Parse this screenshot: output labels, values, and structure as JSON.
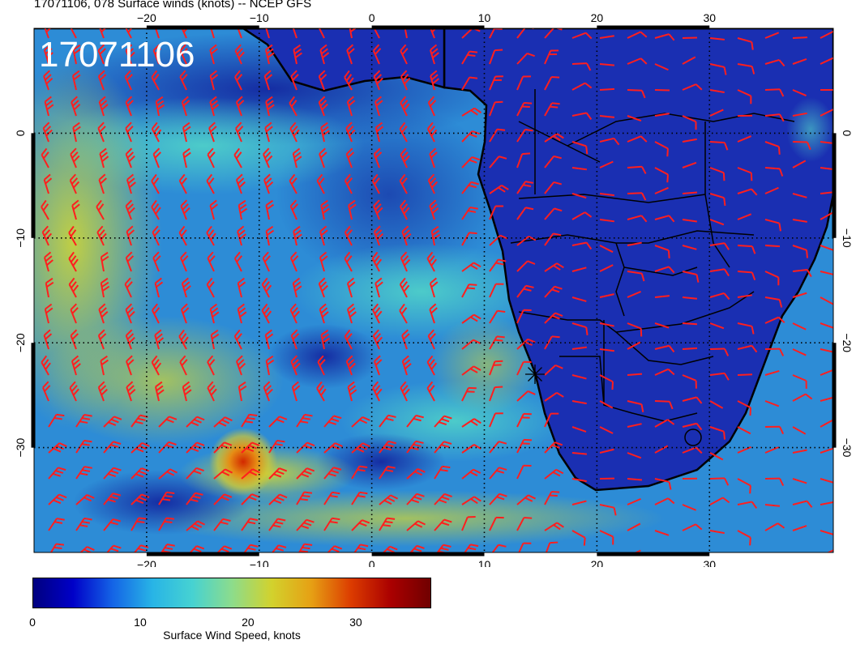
{
  "title": "17071106, 078 Surface winds (knots) -- NCEP GFS",
  "stamp": "17071106",
  "map": {
    "lon_range": [
      -30,
      41
    ],
    "lat_range": [
      -40,
      10
    ],
    "lon_ticks": [
      -20,
      -10,
      0,
      10,
      20,
      30
    ],
    "lat_ticks": [
      0,
      -10,
      -20,
      -30
    ],
    "lon_tick_labels": [
      "−20",
      "−10",
      "0",
      "10",
      "20",
      "30"
    ],
    "lat_tick_labels": [
      "0",
      "−10",
      "−20",
      "−30"
    ],
    "gridlines": "dotted",
    "marker": {
      "lon": 14.5,
      "lat": -23,
      "symbol": "x-star"
    }
  },
  "colorbar": {
    "label": "Surface Wind Speed, knots",
    "range": [
      0,
      37
    ],
    "tick_values": [
      0,
      10,
      20,
      30
    ],
    "tick_labels": [
      "0",
      "10",
      "20",
      "30"
    ],
    "colors": [
      "#00007f",
      "#0000c8",
      "#1464e6",
      "#28b4e6",
      "#46d2d2",
      "#8cdc8c",
      "#d2d22d",
      "#e6a014",
      "#dc3c00",
      "#aa0000",
      "#700000"
    ]
  },
  "colors": {
    "wind_barbs": "#ff1e1e",
    "coastline": "#000000",
    "land_fill": "#1632b4",
    "ocean_fill": "#32a0dc"
  }
}
